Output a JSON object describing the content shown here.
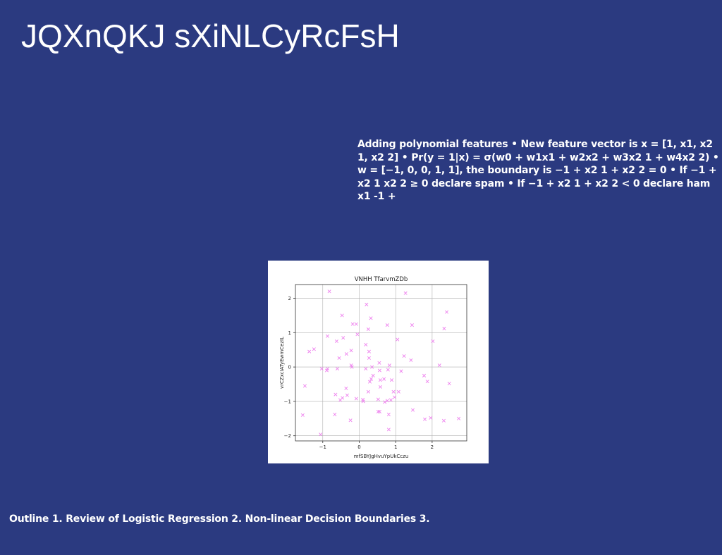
{
  "slide": {
    "title": "JQXnQKJ sXiNLCyRcFsH",
    "body": "Adding polynomial features • New feature vector is x = [1, x1, x2 1, x2 2] • Pr(y = 1|x) = σ(w0 + w1x1 + w2x2 + w3x2 1 + w4x2 2) • w = [−1, 0, 0, 1, 1], the boundary is −1 + x2 1 + x2 2 = 0 • If −1 + x2 1 x2 2 ≥ 0 declare spam • If −1 + x2 1 + x2 2 < 0 declare ham x1 -1 +",
    "footer": "Outline 1. Review of Logistic Regression 2. Non-linear Decision Boundaries 3.",
    "background_color": "#2b3a80"
  },
  "chart_data": {
    "type": "scatter",
    "title": "VNHH TfarvmZDb",
    "xlabel": "mfSBYJgHvuYpUkCczu",
    "ylabel": "vrCZxcIATyEwmCezIL",
    "xlim": [
      -1.75,
      2.95
    ],
    "ylim": [
      -2.15,
      2.4
    ],
    "xticks": [
      -1,
      0,
      1,
      2
    ],
    "yticks": [
      -2,
      -1,
      0,
      1,
      2
    ],
    "grid": true,
    "marker": "x",
    "marker_color": "#ee82ee",
    "points": [
      [
        -0.82,
        2.2
      ],
      [
        1.27,
        2.15
      ],
      [
        0.2,
        1.82
      ],
      [
        2.4,
        1.6
      ],
      [
        -0.47,
        1.5
      ],
      [
        0.32,
        1.42
      ],
      [
        -0.18,
        1.25
      ],
      [
        -0.08,
        1.25
      ],
      [
        0.77,
        1.22
      ],
      [
        1.45,
        1.22
      ],
      [
        2.33,
        1.12
      ],
      [
        0.25,
        1.1
      ],
      [
        -0.05,
        0.95
      ],
      [
        -0.87,
        0.9
      ],
      [
        -0.44,
        0.85
      ],
      [
        1.05,
        0.8
      ],
      [
        -0.62,
        0.75
      ],
      [
        2.02,
        0.75
      ],
      [
        0.18,
        0.65
      ],
      [
        -1.24,
        0.52
      ],
      [
        -1.37,
        0.45
      ],
      [
        0.27,
        0.45
      ],
      [
        -0.22,
        0.48
      ],
      [
        -0.35,
        0.38
      ],
      [
        -0.55,
        0.26
      ],
      [
        0.27,
        0.26
      ],
      [
        1.23,
        0.32
      ],
      [
        1.42,
        0.2
      ],
      [
        0.55,
        0.12
      ],
      [
        0.83,
        0.05
      ],
      [
        2.2,
        0.05
      ],
      [
        -0.22,
        0.05
      ],
      [
        -0.2,
        0.0
      ],
      [
        0.35,
        0.0
      ],
      [
        -1.03,
        -0.05
      ],
      [
        -0.87,
        -0.05
      ],
      [
        -0.6,
        -0.05
      ],
      [
        0.18,
        -0.05
      ],
      [
        0.79,
        -0.08
      ],
      [
        0.56,
        -0.1
      ],
      [
        1.15,
        -0.12
      ],
      [
        -0.89,
        -0.1
      ],
      [
        0.38,
        -0.25
      ],
      [
        1.78,
        -0.25
      ],
      [
        0.33,
        -0.35
      ],
      [
        0.68,
        -0.35
      ],
      [
        0.58,
        -0.38
      ],
      [
        0.89,
        -0.38
      ],
      [
        1.87,
        -0.42
      ],
      [
        0.29,
        -0.43
      ],
      [
        2.47,
        -0.48
      ],
      [
        -1.49,
        -0.55
      ],
      [
        0.58,
        -0.58
      ],
      [
        -0.36,
        -0.62
      ],
      [
        0.25,
        -0.72
      ],
      [
        0.94,
        -0.72
      ],
      [
        1.08,
        -0.72
      ],
      [
        -0.65,
        -0.8
      ],
      [
        -0.33,
        -0.82
      ],
      [
        0.97,
        -0.88
      ],
      [
        -0.46,
        -0.9
      ],
      [
        -0.08,
        -0.92
      ],
      [
        0.52,
        -0.94
      ],
      [
        -0.52,
        -0.96
      ],
      [
        0.1,
        -0.95
      ],
      [
        0.87,
        -0.96
      ],
      [
        0.11,
        -1.0
      ],
      [
        0.7,
        -1.02
      ],
      [
        0.77,
        -0.98
      ],
      [
        1.47,
        -1.25
      ],
      [
        0.56,
        -1.3
      ],
      [
        0.52,
        -1.3
      ],
      [
        0.81,
        -1.38
      ],
      [
        -0.67,
        -1.38
      ],
      [
        -1.55,
        -1.4
      ],
      [
        1.96,
        -1.48
      ],
      [
        2.73,
        -1.5
      ],
      [
        1.8,
        -1.52
      ],
      [
        2.32,
        -1.56
      ],
      [
        -0.24,
        -1.55
      ],
      [
        0.81,
        -1.82
      ],
      [
        -1.06,
        -1.96
      ]
    ]
  }
}
